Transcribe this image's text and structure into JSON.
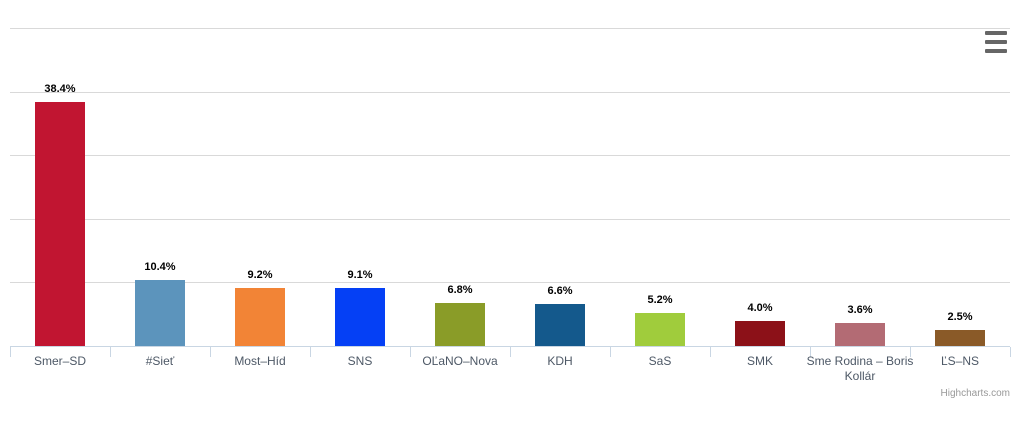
{
  "chart_data": {
    "type": "bar",
    "title": "",
    "xlabel": "",
    "ylabel": "",
    "categories": [
      "Smer–SD",
      "#Sieť",
      "Most–Híd",
      "SNS",
      "OĽaNO–Nova",
      "KDH",
      "SaS",
      "SMK",
      "Sme Rodina – Boris Kollár",
      "ĽS–NS"
    ],
    "values": [
      38.4,
      10.4,
      9.2,
      9.1,
      6.8,
      6.6,
      5.2,
      4.0,
      3.6,
      2.5
    ],
    "data_labels": [
      "38.4%",
      "10.4%",
      "9.2%",
      "9.1%",
      "6.8%",
      "6.6%",
      "5.2%",
      "4.0%",
      "3.6%",
      "2.5%"
    ],
    "colors": [
      "#C11531",
      "#5C94BC",
      "#F28436",
      "#0540F5",
      "#8A9C28",
      "#14598C",
      "#A0CC3C",
      "#8C1118",
      "#B36B74",
      "#8A5A28"
    ],
    "ylim": [
      0,
      50
    ],
    "grid": true,
    "gridline_step": 10,
    "legend": "none"
  },
  "ui": {
    "export_menu_icon": "hamburger-menu-icon",
    "credits_label": "Highcharts.com"
  },
  "colors": {
    "background": "#ffffff",
    "gridline": "#d9d9d9",
    "axis_line": "#c9d6e3",
    "data_label": "#000000",
    "category_label": "#4d5866",
    "credits": "#999999",
    "menu_icon": "#666666"
  }
}
